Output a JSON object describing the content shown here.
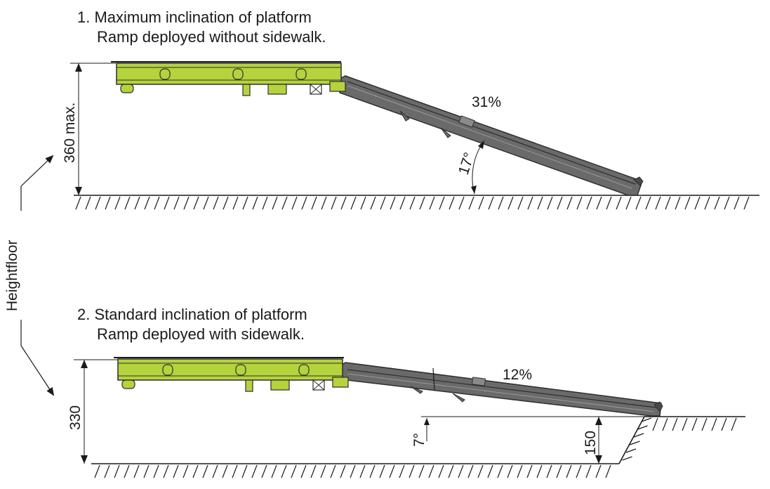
{
  "colors": {
    "platform": "#b5d33d",
    "platform_dark": "#8fa82a",
    "ramp": "#5a5a5a",
    "ramp_dark": "#2e2e2e",
    "line": "#1a1a1a"
  },
  "scenario_1": {
    "title_line1": "1. Maximum inclination of platform",
    "title_line2": "Ramp deployed without sidewalk.",
    "slope_percent": "31%",
    "angle": "17°",
    "height_dim": "360 max."
  },
  "scenario_2": {
    "title_line1": "2. Standard inclination of platform",
    "title_line2": "Ramp deployed with sidewalk.",
    "slope_percent": "12%",
    "angle": "7°",
    "height_dim": "330",
    "sidewalk_dim": "150"
  },
  "side_label": "Heightfloor"
}
